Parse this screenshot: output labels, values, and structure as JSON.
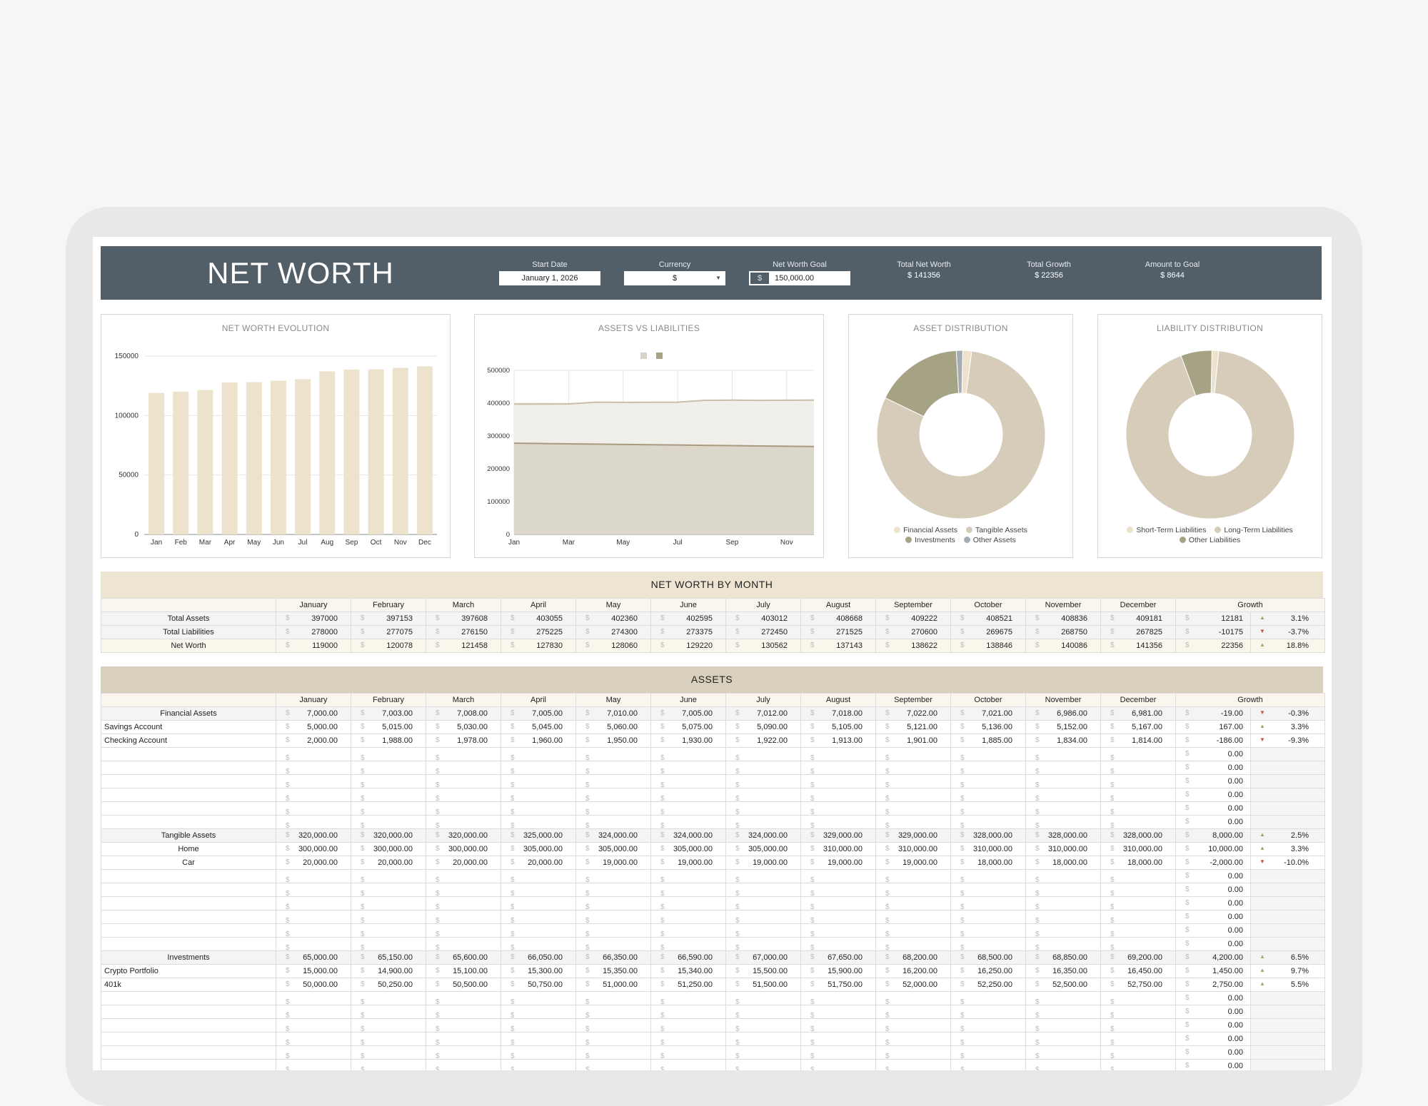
{
  "header": {
    "title": "NET WORTH",
    "start_date_label": "Start Date",
    "start_date_value": "January 1, 2026",
    "currency_label": "Currency",
    "currency_value": "$",
    "goal_label": "Net Worth Goal",
    "goal_currency": "$",
    "goal_value": "150,000.00",
    "total_net_worth_label": "Total Net Worth",
    "total_net_worth_value": "$ 141356",
    "total_growth_label": "Total Growth",
    "total_growth_value": "$ 22356",
    "amount_to_goal_label": "Amount to Goal",
    "amount_to_goal_value": "$ 8644"
  },
  "charts": {
    "evolution_title": "NET WORTH EVOLUTION",
    "assets_liabilities_title": "ASSETS VS LIABILITIES",
    "asset_dist_title": "ASSET DISTRIBUTION",
    "liability_dist_title": "LIABILITY DISTRIBUTION",
    "asset_legend": [
      "Financial Assets",
      "Tangible Assets",
      "Investments",
      "Other Assets"
    ],
    "liability_legend": [
      "Short-Term Liabilities",
      "Long-Term Liabilities",
      "Other Liabilities"
    ],
    "colors": {
      "bar": "#ede2cc",
      "assets_area": "#f1efea",
      "liab_area": "#d8d4c7",
      "line_assets": "#c8bfa8",
      "line_liab": "#a99a80",
      "tan": "#d6ccb9",
      "olive": "#a6a284",
      "cream": "#ede2cc",
      "gray": "#a6adb2"
    }
  },
  "chart_data": [
    {
      "type": "bar",
      "title": "NET WORTH EVOLUTION",
      "categories": [
        "Jan",
        "Feb",
        "Mar",
        "Apr",
        "May",
        "Jun",
        "Jul",
        "Aug",
        "Sep",
        "Oct",
        "Nov",
        "Dec"
      ],
      "values": [
        119000,
        120078,
        121458,
        127830,
        128060,
        129220,
        130562,
        137143,
        138622,
        138846,
        140086,
        141356
      ],
      "yticks": [
        0,
        50000,
        100000,
        150000
      ],
      "ylim": [
        0,
        150000
      ],
      "grid": true
    },
    {
      "type": "area",
      "title": "ASSETS VS LIABILITIES",
      "categories": [
        "Jan",
        "Feb",
        "Mar",
        "Apr",
        "May",
        "Jun",
        "Jul",
        "Aug",
        "Sep",
        "Oct",
        "Nov",
        "Dec"
      ],
      "xtick_labels": [
        "Jan",
        "Mar",
        "May",
        "Jul",
        "Sep",
        "Nov"
      ],
      "series": [
        {
          "values": [
            397000,
            397153,
            397608,
            403055,
            402360,
            402595,
            403012,
            408668,
            409222,
            408521,
            408836,
            409181
          ]
        },
        {
          "values": [
            278000,
            277075,
            276150,
            275225,
            274300,
            273375,
            272450,
            271525,
            270600,
            269675,
            268750,
            267825
          ]
        }
      ],
      "yticks": [
        0,
        100000,
        200000,
        300000,
        400000,
        500000
      ],
      "ylim": [
        0,
        500000
      ],
      "legend": "top-center"
    },
    {
      "type": "pie",
      "title": "ASSET DISTRIBUTION",
      "labels": [
        "Financial Assets",
        "Tangible Assets",
        "Investments",
        "Other Assets"
      ],
      "values": [
        6981,
        328000,
        69200,
        5000
      ],
      "legend": "bottom"
    },
    {
      "type": "pie",
      "title": "LIABILITY DISTRIBUTION",
      "labels": [
        "Short-Term Liabilities",
        "Long-Term Liabilities",
        "Other Liabilities"
      ],
      "values": [
        3500,
        248325,
        16000
      ],
      "legend": "bottom"
    }
  ],
  "months": [
    "January",
    "February",
    "March",
    "April",
    "May",
    "June",
    "July",
    "August",
    "September",
    "October",
    "November",
    "December"
  ],
  "growth_label": "Growth",
  "nw_by_month": {
    "title": "NET WORTH BY MONTH",
    "rows": [
      {
        "label": "Total Assets",
        "values": [
          "397000",
          "397153",
          "397608",
          "403055",
          "402360",
          "402595",
          "403012",
          "408668",
          "409222",
          "408521",
          "408836",
          "409181"
        ],
        "growth": "12181",
        "dir": "up",
        "pct": "3.1%"
      },
      {
        "label": "Total Liabilities",
        "values": [
          "278000",
          "277075",
          "276150",
          "275225",
          "274300",
          "273375",
          "272450",
          "271525",
          "270600",
          "269675",
          "268750",
          "267825"
        ],
        "growth": "-10175",
        "dir": "down",
        "pct": "-3.7%"
      },
      {
        "label": "Net Worth",
        "values": [
          "119000",
          "120078",
          "121458",
          "127830",
          "128060",
          "129220",
          "130562",
          "137143",
          "138622",
          "138846",
          "140086",
          "141356"
        ],
        "growth": "22356",
        "dir": "up",
        "pct": "18.8%"
      }
    ]
  },
  "assets": {
    "title": "ASSETS",
    "groups": [
      {
        "label": "Financial Assets",
        "values": [
          "7,000.00",
          "7,003.00",
          "7,008.00",
          "7,005.00",
          "7,010.00",
          "7,005.00",
          "7,012.00",
          "7,018.00",
          "7,022.00",
          "7,021.00",
          "6,986.00",
          "6,981.00"
        ],
        "growth": "-19.00",
        "dir": "down",
        "pct": "-0.3%",
        "align": "left",
        "items": [
          {
            "label": "Savings Account",
            "values": [
              "5,000.00",
              "5,015.00",
              "5,030.00",
              "5,045.00",
              "5,060.00",
              "5,075.00",
              "5,090.00",
              "5,105.00",
              "5,121.00",
              "5,136.00",
              "5,152.00",
              "5,167.00"
            ],
            "growth": "167.00",
            "dir": "up",
            "pct": "3.3%"
          },
          {
            "label": "Checking Account",
            "values": [
              "2,000.00",
              "1,988.00",
              "1,978.00",
              "1,960.00",
              "1,950.00",
              "1,930.00",
              "1,922.00",
              "1,913.00",
              "1,901.00",
              "1,885.00",
              "1,834.00",
              "1,814.00"
            ],
            "growth": "-186.00",
            "dir": "down",
            "pct": "-9.3%"
          }
        ],
        "empty_growth": [
          "0.00",
          "0.00",
          "0.00",
          "0.00",
          "0.00",
          "0.00"
        ]
      },
      {
        "label": "Tangible Assets",
        "values": [
          "320,000.00",
          "320,000.00",
          "320,000.00",
          "325,000.00",
          "324,000.00",
          "324,000.00",
          "324,000.00",
          "329,000.00",
          "329,000.00",
          "328,000.00",
          "328,000.00",
          "328,000.00"
        ],
        "growth": "8,000.00",
        "dir": "up",
        "pct": "2.5%",
        "align": "center",
        "items": [
          {
            "label": "Home",
            "values": [
              "300,000.00",
              "300,000.00",
              "300,000.00",
              "305,000.00",
              "305,000.00",
              "305,000.00",
              "305,000.00",
              "310,000.00",
              "310,000.00",
              "310,000.00",
              "310,000.00",
              "310,000.00"
            ],
            "growth": "10,000.00",
            "dir": "up",
            "pct": "3.3%"
          },
          {
            "label": "Car",
            "values": [
              "20,000.00",
              "20,000.00",
              "20,000.00",
              "20,000.00",
              "19,000.00",
              "19,000.00",
              "19,000.00",
              "19,000.00",
              "19,000.00",
              "18,000.00",
              "18,000.00",
              "18,000.00"
            ],
            "growth": "-2,000.00",
            "dir": "down",
            "pct": "-10.0%"
          }
        ],
        "empty_growth": [
          "0.00",
          "0.00",
          "0.00",
          "0.00",
          "0.00",
          "0.00"
        ]
      },
      {
        "label": "Investments",
        "values": [
          "65,000.00",
          "65,150.00",
          "65,600.00",
          "66,050.00",
          "66,350.00",
          "66,590.00",
          "67,000.00",
          "67,650.00",
          "68,200.00",
          "68,500.00",
          "68,850.00",
          "69,200.00"
        ],
        "growth": "4,200.00",
        "dir": "up",
        "pct": "6.5%",
        "align": "left",
        "items": [
          {
            "label": "Crypto Portfolio",
            "values": [
              "15,000.00",
              "14,900.00",
              "15,100.00",
              "15,300.00",
              "15,350.00",
              "15,340.00",
              "15,500.00",
              "15,900.00",
              "16,200.00",
              "16,250.00",
              "16,350.00",
              "16,450.00"
            ],
            "growth": "1,450.00",
            "dir": "up",
            "pct": "9.7%"
          },
          {
            "label": "401k",
            "values": [
              "50,000.00",
              "50,250.00",
              "50,500.00",
              "50,750.00",
              "51,000.00",
              "51,250.00",
              "51,500.00",
              "51,750.00",
              "52,000.00",
              "52,250.00",
              "52,500.00",
              "52,750.00"
            ],
            "growth": "2,750.00",
            "dir": "up",
            "pct": "5.5%"
          }
        ],
        "empty_growth": [
          "0.00",
          "0.00",
          "0.00",
          "0.00",
          "0.00",
          "0.00"
        ]
      }
    ]
  }
}
